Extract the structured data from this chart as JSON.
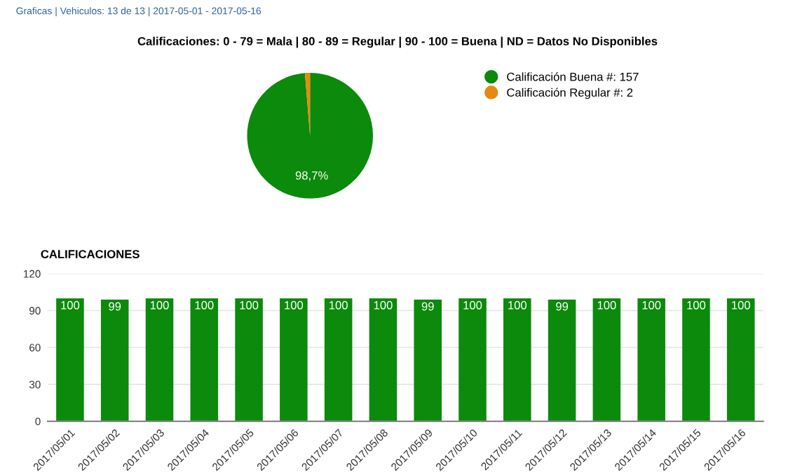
{
  "chart_data": [
    {
      "type": "pie",
      "title": "Calificaciones: 0 - 79 = Mala | 80 - 89 = Regular | 90 - 100 = Buena | ND = Datos No Disponibles",
      "annotations": [
        "Graficas | Vehiculos: 13 de 13 | 2017-05-01 - 2017-05-16"
      ],
      "categories": [
        "Calificación Buena #: 157",
        "Calificación Regular #: 2"
      ],
      "values": [
        98.7,
        1.3
      ],
      "colors": [
        "#0b8a0b",
        "#e58a10"
      ],
      "value_labels": [
        "98,7%",
        null
      ],
      "legend": "right"
    },
    {
      "type": "bar",
      "title": "CALIFICACIONES",
      "categories": [
        "2017/05/01",
        "2017/05/02",
        "2017/05/03",
        "2017/05/04",
        "2017/05/05",
        "2017/05/06",
        "2017/05/07",
        "2017/05/08",
        "2017/05/09",
        "2017/05/10",
        "2017/05/11",
        "2017/05/12",
        "2017/05/13",
        "2017/05/14",
        "2017/05/15",
        "2017/05/16"
      ],
      "values": [
        100,
        99,
        100,
        100,
        100,
        100,
        100,
        100,
        99,
        100,
        100,
        99,
        100,
        100,
        100,
        100
      ],
      "color": "#0b8a0b",
      "ylim": [
        0,
        120
      ],
      "yticks": [
        0,
        30,
        60,
        90,
        120
      ],
      "grid": "y",
      "data_labels": true
    }
  ]
}
